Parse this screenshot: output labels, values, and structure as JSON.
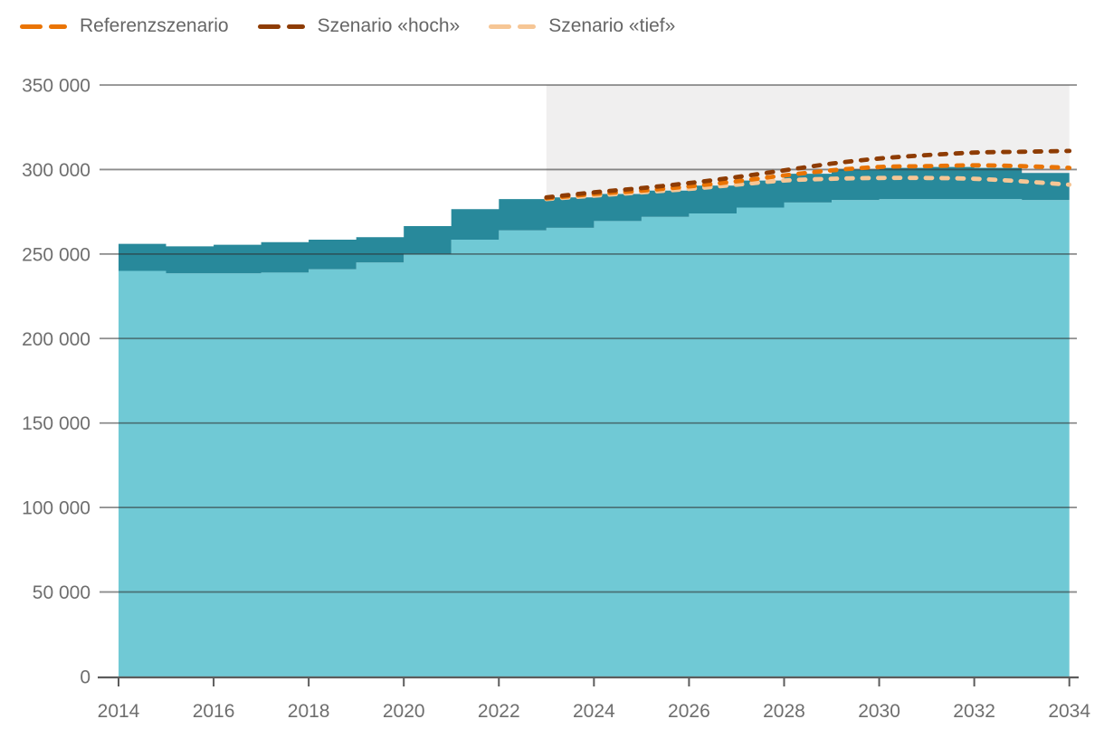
{
  "legend": {
    "items": [
      {
        "label": "Referenzszenario",
        "color": "#ea7404"
      },
      {
        "label": "Szenario «hoch»",
        "color": "#8e3c04"
      },
      {
        "label": "Szenario «tief»",
        "color": "#f6c695"
      }
    ]
  },
  "chart_data": {
    "type": "area",
    "title": "",
    "xlabel": "",
    "ylabel": "",
    "xlim": [
      2014,
      2034
    ],
    "ylim": [
      0,
      350000
    ],
    "grid": "horizontal",
    "legend_position": "top-left",
    "x_years": [
      2014,
      2015,
      2016,
      2017,
      2018,
      2019,
      2020,
      2021,
      2022,
      2023,
      2024,
      2025,
      2026,
      2027,
      2028,
      2029,
      2030,
      2031,
      2032,
      2033
    ],
    "series": [
      {
        "name": "observed-total-band",
        "color": "#28899b",
        "values": [
          256000,
          254500,
          255500,
          257000,
          258500,
          260000,
          266500,
          276500,
          282500,
          283500,
          285500,
          287500,
          290500,
          293500,
          297500,
          300000,
          301000,
          301500,
          301000,
          298000
        ]
      },
      {
        "name": "observed-lower-band",
        "color": "#70c9d5",
        "values": [
          240000,
          238500,
          238500,
          239000,
          241000,
          245000,
          250000,
          258500,
          264000,
          265500,
          269500,
          272000,
          274000,
          277500,
          280500,
          282000,
          282500,
          282500,
          282500,
          282000
        ]
      }
    ],
    "scenarios": {
      "x_years": [
        2023,
        2024,
        2025,
        2026,
        2027,
        2028,
        2029,
        2030,
        2031,
        2032,
        2033,
        2034
      ],
      "series": [
        {
          "name": "Szenario «tief»",
          "color": "#f6c695",
          "values": [
            282500,
            284500,
            286500,
            288500,
            291000,
            293500,
            294500,
            295000,
            295000,
            294500,
            293000,
            291000
          ]
        },
        {
          "name": "Referenzszenario",
          "color": "#ea7404",
          "values": [
            283000,
            285500,
            287500,
            290000,
            293000,
            296500,
            299500,
            301500,
            302000,
            302500,
            302000,
            301000
          ]
        },
        {
          "name": "Szenario «hoch»",
          "color": "#8e3c04",
          "values": [
            283500,
            286500,
            289000,
            292000,
            295500,
            299500,
            303500,
            306500,
            308500,
            310000,
            310500,
            311000
          ]
        }
      ]
    },
    "projection": {
      "start_year": 2023,
      "end_year": 2034,
      "bg_color": "#f0efef"
    },
    "x_ticks": [
      {
        "v": 2014,
        "label": "2014"
      },
      {
        "v": 2016,
        "label": "2016"
      },
      {
        "v": 2018,
        "label": "2018"
      },
      {
        "v": 2020,
        "label": "2020"
      },
      {
        "v": 2022,
        "label": "2022"
      },
      {
        "v": 2024,
        "label": "2024"
      },
      {
        "v": 2026,
        "label": "2026"
      },
      {
        "v": 2028,
        "label": "2028"
      },
      {
        "v": 2030,
        "label": "2030"
      },
      {
        "v": 2032,
        "label": "2032"
      },
      {
        "v": 2034,
        "label": "2034"
      }
    ],
    "y_ticks": [
      {
        "v": 0,
        "label": "0"
      },
      {
        "v": 50000,
        "label": "50 000"
      },
      {
        "v": 100000,
        "label": "100 000"
      },
      {
        "v": 150000,
        "label": "150 000"
      },
      {
        "v": 200000,
        "label": "200 000"
      },
      {
        "v": 250000,
        "label": "250 000"
      },
      {
        "v": 300000,
        "label": "300 000"
      },
      {
        "v": 350000,
        "label": "350 000"
      }
    ],
    "colors": {
      "grid_line": "#8a8a8a",
      "axis_line": "#5c5c5c",
      "tick_text": "#6e6e6e"
    }
  }
}
